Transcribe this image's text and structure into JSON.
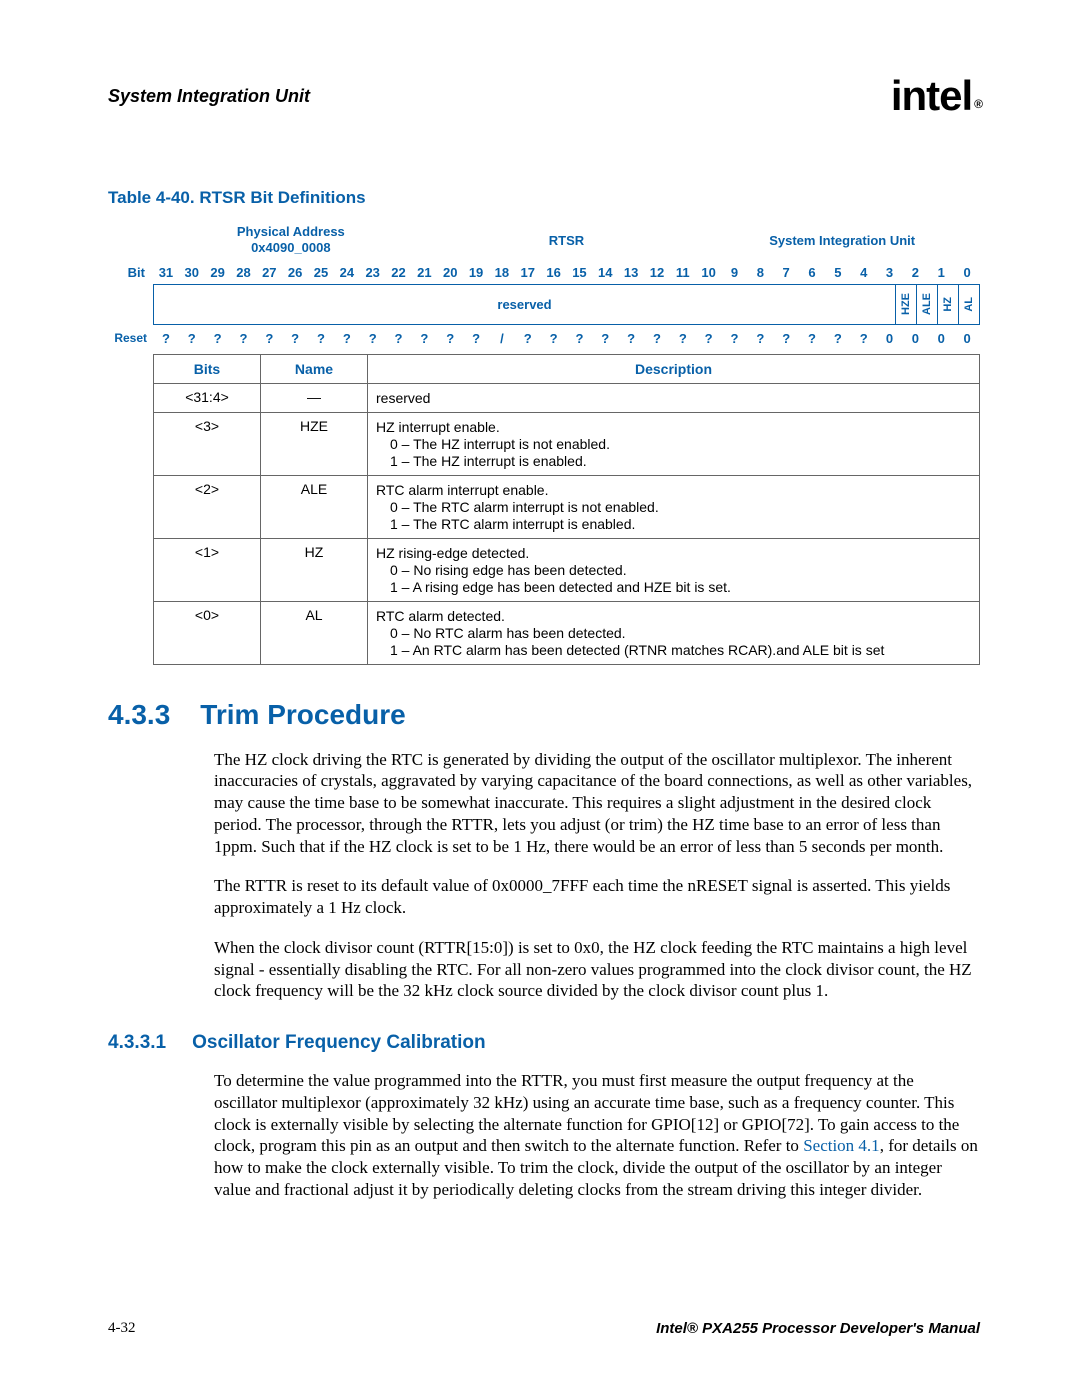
{
  "header": {
    "section_title": "System Integration Unit",
    "logo_text": "intel",
    "logo_reg": "®"
  },
  "table_caption": "Table 4-40. RTSR Bit Definitions",
  "bitdef": {
    "phys_addr_label": "Physical Address",
    "phys_addr_value": "0x4090_0008",
    "reg_name": "RTSR",
    "unit_name": "System Integration Unit",
    "bit_label": "Bit",
    "bit_numbers": [
      "31",
      "30",
      "29",
      "28",
      "27",
      "26",
      "25",
      "24",
      "23",
      "22",
      "21",
      "20",
      "19",
      "18",
      "17",
      "16",
      "15",
      "14",
      "13",
      "12",
      "11",
      "10",
      "9",
      "8",
      "7",
      "6",
      "5",
      "4",
      "3",
      "2",
      "1",
      "0"
    ],
    "reserved_label": "reserved",
    "field_names": [
      "HZE",
      "ALE",
      "HZ",
      "AL"
    ],
    "reset_label": "Reset",
    "reset_values": [
      "?",
      "?",
      "?",
      "?",
      "?",
      "?",
      "?",
      "?",
      "?",
      "?",
      "?",
      "?",
      "?",
      "/",
      "?",
      "?",
      "?",
      "?",
      "?",
      "?",
      "?",
      "?",
      "?",
      "?",
      "?",
      "?",
      "?",
      "?",
      "0",
      "0",
      "0",
      "0"
    ]
  },
  "desc_headers": {
    "bits": "Bits",
    "name": "Name",
    "description": "Description"
  },
  "desc_rows": [
    {
      "bits": "<31:4>",
      "name": "—",
      "lines": [
        "reserved"
      ]
    },
    {
      "bits": "<3>",
      "name": "HZE",
      "lines": [
        "HZ interrupt enable.",
        "0 –  The HZ interrupt is not enabled.",
        "1 –  The HZ interrupt is enabled."
      ],
      "sub_from": 1
    },
    {
      "bits": "<2>",
      "name": "ALE",
      "lines": [
        "RTC alarm interrupt enable.",
        "0 –  The RTC alarm interrupt is not enabled.",
        "1 –  The RTC alarm interrupt is enabled."
      ],
      "sub_from": 1
    },
    {
      "bits": "<1>",
      "name": "HZ",
      "lines": [
        "HZ rising-edge detected.",
        "0 –  No rising edge has been detected.",
        "1 –  A rising edge has been detected and HZE bit is set."
      ],
      "sub_from": 1
    },
    {
      "bits": "<0>",
      "name": "AL",
      "lines": [
        "RTC alarm detected.",
        "0 –  No RTC alarm has been detected.",
        "1 –  An RTC alarm has been detected (RTNR matches RCAR).and ALE bit is set"
      ],
      "sub_from": 1
    }
  ],
  "h2": {
    "num": "4.3.3",
    "title": "Trim Procedure"
  },
  "paras": [
    "The HZ clock driving the RTC is generated by dividing the output of the oscillator multiplexor. The inherent inaccuracies of crystals, aggravated by varying capacitance of the board connections, as well as other variables, may cause the time base to be somewhat inaccurate. This requires a slight adjustment in the desired clock period. The processor, through the RTTR, lets you adjust (or trim) the HZ time base to an error of less than 1ppm. Such that if the HZ clock is set to be 1 Hz, there would be an error of less than 5 seconds per month.",
    "The RTTR is reset to its default value of 0x0000_7FFF each time the nRESET signal is asserted. This yields approximately a 1 Hz clock.",
    "When the clock divisor count (RTTR[15:0]) is set to 0x0, the HZ clock feeding the RTC maintains a high level signal - essentially disabling the RTC. For all non-zero values programmed into the clock divisor count, the HZ clock frequency will be the 32 kHz clock source divided by the clock divisor count plus 1."
  ],
  "h3": {
    "num": "4.3.3.1",
    "title": "Oscillator Frequency Calibration"
  },
  "para4_pre": "To determine the value programmed into the RTTR, you must first measure the output frequency at the oscillator multiplexor (approximately 32 kHz) using an accurate time base, such as a frequency counter. This clock is externally visible by selecting the alternate function for GPIO[12] or GPIO[72]. To gain access to the clock, program this pin as an output and then switch to the alternate function. Refer to ",
  "para4_link": "Section 4.1",
  "para4_post": ", for details on how to make the clock externally visible. To trim the clock, divide the output of the oscillator by an integer value and fractional adjust it by periodically deleting clocks from the stream driving this integer divider.",
  "footer": {
    "page": "4-32",
    "manual": "Intel® PXA255 Processor Developer's Manual"
  }
}
